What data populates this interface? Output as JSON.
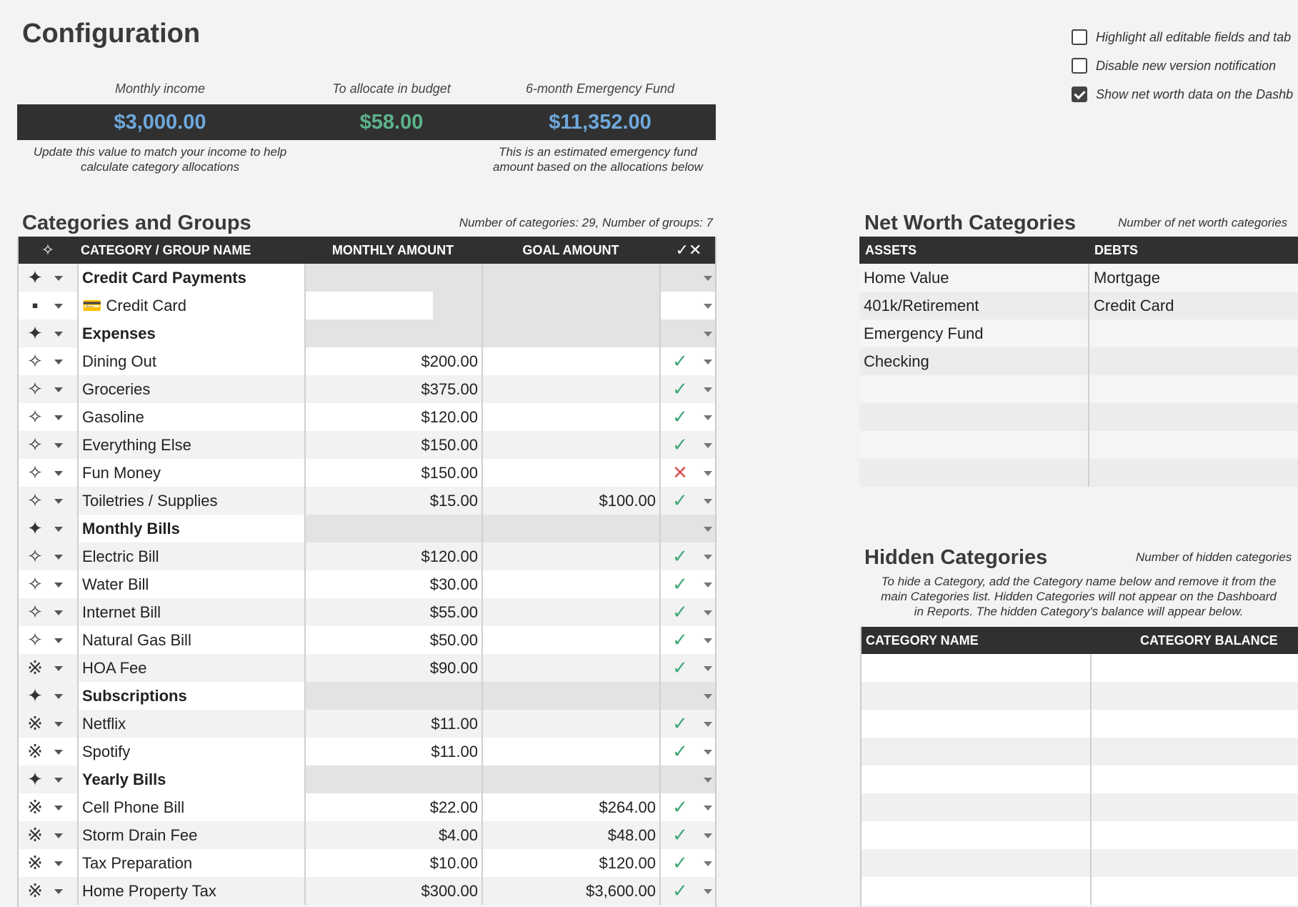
{
  "page": {
    "title": "Configuration"
  },
  "options": [
    {
      "label": "Highlight all editable fields and tab",
      "checked": false
    },
    {
      "label": "Disable new version notification",
      "checked": false
    },
    {
      "label": "Show net worth data on the Dashb",
      "checked": true
    }
  ],
  "summary": {
    "income_label": "Monthly income",
    "income_value": "$3,000.00",
    "allocate_label": "To allocate in budget",
    "allocate_value": "$58.00",
    "emergency_label": "6-month Emergency Fund",
    "emergency_value": "$11,352.00",
    "income_note": "Update this value to match your income to help calculate category allocations",
    "emergency_note": "This is an estimated emergency fund amount based on the allocations below",
    "colors": {
      "blue": "#6fa8dc",
      "green": "#5cb38a"
    }
  },
  "categories": {
    "title": "Categories and Groups",
    "count_text": "Number of categories: 29, Number of groups: 7",
    "columns": {
      "icon": "✧",
      "name": "CATEGORY / GROUP NAME",
      "monthly": "MONTHLY AMOUNT",
      "goal": "GOAL AMOUNT",
      "status": "✓✕"
    },
    "rows": [
      {
        "type": "group",
        "icon": "✦",
        "name": "Credit Card Payments",
        "monthly": "",
        "goal": "",
        "status": ""
      },
      {
        "type": "card",
        "icon": "▪",
        "name": "💳 Credit Card",
        "monthly": "",
        "goal": "",
        "status": ""
      },
      {
        "type": "group",
        "icon": "✦",
        "name": "Expenses",
        "monthly": "",
        "goal": "",
        "status": ""
      },
      {
        "type": "cat",
        "icon": "✧",
        "name": "Dining Out",
        "monthly": "$200.00",
        "goal": "",
        "status": "ok"
      },
      {
        "type": "cat",
        "icon": "✧",
        "name": "Groceries",
        "monthly": "$375.00",
        "goal": "",
        "status": "ok"
      },
      {
        "type": "cat",
        "icon": "✧",
        "name": "Gasoline",
        "monthly": "$120.00",
        "goal": "",
        "status": "ok"
      },
      {
        "type": "cat",
        "icon": "✧",
        "name": "Everything Else",
        "monthly": "$150.00",
        "goal": "",
        "status": "ok"
      },
      {
        "type": "cat",
        "icon": "✧",
        "name": "Fun Money",
        "monthly": "$150.00",
        "goal": "",
        "status": "bad"
      },
      {
        "type": "cat",
        "icon": "✧",
        "name": "Toiletries / Supplies",
        "monthly": "$15.00",
        "goal": "$100.00",
        "status": "ok"
      },
      {
        "type": "group",
        "icon": "✦",
        "name": "Monthly Bills",
        "monthly": "",
        "goal": "",
        "status": ""
      },
      {
        "type": "cat",
        "icon": "✧",
        "name": "Electric Bill",
        "monthly": "$120.00",
        "goal": "",
        "status": "ok"
      },
      {
        "type": "cat",
        "icon": "✧",
        "name": "Water Bill",
        "monthly": "$30.00",
        "goal": "",
        "status": "ok"
      },
      {
        "type": "cat",
        "icon": "✧",
        "name": "Internet Bill",
        "monthly": "$55.00",
        "goal": "",
        "status": "ok"
      },
      {
        "type": "cat",
        "icon": "✧",
        "name": "Natural Gas Bill",
        "monthly": "$50.00",
        "goal": "",
        "status": "ok"
      },
      {
        "type": "cat",
        "icon": "※",
        "name": "HOA Fee",
        "monthly": "$90.00",
        "goal": "",
        "status": "ok"
      },
      {
        "type": "group",
        "icon": "✦",
        "name": "Subscriptions",
        "monthly": "",
        "goal": "",
        "status": ""
      },
      {
        "type": "cat",
        "icon": "※",
        "name": "Netflix",
        "monthly": "$11.00",
        "goal": "",
        "status": "ok"
      },
      {
        "type": "cat",
        "icon": "※",
        "name": "Spotify",
        "monthly": "$11.00",
        "goal": "",
        "status": "ok"
      },
      {
        "type": "group",
        "icon": "✦",
        "name": "Yearly Bills",
        "monthly": "",
        "goal": "",
        "status": ""
      },
      {
        "type": "cat",
        "icon": "※",
        "name": "Cell Phone Bill",
        "monthly": "$22.00",
        "goal": "$264.00",
        "status": "ok"
      },
      {
        "type": "cat",
        "icon": "※",
        "name": "Storm Drain Fee",
        "monthly": "$4.00",
        "goal": "$48.00",
        "status": "ok"
      },
      {
        "type": "cat",
        "icon": "※",
        "name": "Tax Preparation",
        "monthly": "$10.00",
        "goal": "$120.00",
        "status": "ok"
      },
      {
        "type": "cat",
        "icon": "※",
        "name": "Home Property Tax",
        "monthly": "$300.00",
        "goal": "$3,600.00",
        "status": "ok"
      }
    ],
    "status_glyphs": {
      "ok": "✓",
      "bad": "✕"
    }
  },
  "net_worth": {
    "title": "Net Worth Categories",
    "count_text": "Number of net worth categories",
    "columns": {
      "assets": "ASSETS",
      "debts": "DEBTS"
    },
    "rows": [
      {
        "asset": "Home Value",
        "debt": "Mortgage"
      },
      {
        "asset": "401k/Retirement",
        "debt": "Credit Card"
      },
      {
        "asset": "Emergency Fund",
        "debt": ""
      },
      {
        "asset": "Checking",
        "debt": ""
      },
      {
        "asset": "",
        "debt": ""
      },
      {
        "asset": "",
        "debt": ""
      },
      {
        "asset": "",
        "debt": ""
      },
      {
        "asset": "",
        "debt": ""
      }
    ]
  },
  "hidden": {
    "title": "Hidden Categories",
    "count_text": "Number of hidden categories",
    "note_lines": [
      "To hide a Category, add the Category name below and remove it from the",
      "main Categories list. Hidden Categories will not appear on the Dashboard",
      "in Reports. The hidden Category's balance will appear below."
    ],
    "columns": {
      "name": "CATEGORY NAME",
      "balance": "CATEGORY BALANCE"
    },
    "empty_rows": 9
  }
}
